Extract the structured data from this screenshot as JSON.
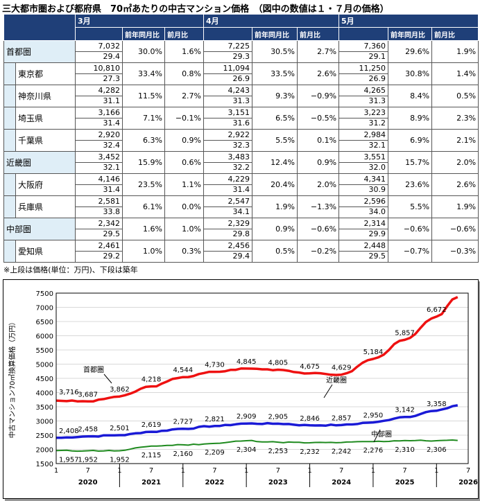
{
  "title": "三大都市圏および都府県　70㎡あたりの中古マンション価格　（図中の数値は１・７月の価格）",
  "table": {
    "months": [
      "3月",
      "4月",
      "5月"
    ],
    "subheaders": [
      "前年同月比",
      "前月比"
    ],
    "rows": [
      {
        "name": "首都圏",
        "level": 0,
        "vals": [
          {
            "price": "7,032",
            "age": "29.4",
            "yoy": "30.0%",
            "mom": "1.6%"
          },
          {
            "price": "7,225",
            "age": "29.3",
            "yoy": "30.5%",
            "mom": "2.7%"
          },
          {
            "price": "7,360",
            "age": "29.1",
            "yoy": "29.6%",
            "mom": "1.9%"
          }
        ]
      },
      {
        "name": "東京都",
        "level": 1,
        "vals": [
          {
            "price": "10,810",
            "age": "27.3",
            "yoy": "33.4%",
            "mom": "0.8%"
          },
          {
            "price": "11,094",
            "age": "26.9",
            "yoy": "33.5%",
            "mom": "2.6%"
          },
          {
            "price": "11,250",
            "age": "26.9",
            "yoy": "30.8%",
            "mom": "1.4%"
          }
        ]
      },
      {
        "name": "神奈川県",
        "level": 1,
        "vals": [
          {
            "price": "4,282",
            "age": "31.1",
            "yoy": "11.5%",
            "mom": "2.7%"
          },
          {
            "price": "4,243",
            "age": "31.3",
            "yoy": "9.3%",
            "mom": "−0.9%"
          },
          {
            "price": "4,265",
            "age": "31.3",
            "yoy": "8.4%",
            "mom": "0.5%"
          }
        ]
      },
      {
        "name": "埼玉県",
        "level": 1,
        "vals": [
          {
            "price": "3,166",
            "age": "31.4",
            "yoy": "7.1%",
            "mom": "−0.1%"
          },
          {
            "price": "3,151",
            "age": "31.6",
            "yoy": "6.5%",
            "mom": "−0.5%"
          },
          {
            "price": "3,223",
            "age": "31.2",
            "yoy": "8.9%",
            "mom": "2.3%"
          }
        ]
      },
      {
        "name": "千葉県",
        "level": 1,
        "vals": [
          {
            "price": "2,920",
            "age": "32.4",
            "yoy": "6.3%",
            "mom": "0.9%"
          },
          {
            "price": "2,922",
            "age": "32.3",
            "yoy": "5.5%",
            "mom": "0.1%"
          },
          {
            "price": "2,984",
            "age": "32.1",
            "yoy": "6.9%",
            "mom": "2.1%"
          }
        ]
      },
      {
        "name": "近畿圏",
        "level": 0,
        "vals": [
          {
            "price": "3,452",
            "age": "32.1",
            "yoy": "15.9%",
            "mom": "0.6%"
          },
          {
            "price": "3,483",
            "age": "32.2",
            "yoy": "12.4%",
            "mom": "0.9%"
          },
          {
            "price": "3,551",
            "age": "32.0",
            "yoy": "15.7%",
            "mom": "2.0%"
          }
        ]
      },
      {
        "name": "大阪府",
        "level": 1,
        "vals": [
          {
            "price": "4,146",
            "age": "31.4",
            "yoy": "23.5%",
            "mom": "1.1%"
          },
          {
            "price": "4,229",
            "age": "31.4",
            "yoy": "20.4%",
            "mom": "2.0%"
          },
          {
            "price": "4,341",
            "age": "30.9",
            "yoy": "23.6%",
            "mom": "2.6%"
          }
        ]
      },
      {
        "name": "兵庫県",
        "level": 1,
        "vals": [
          {
            "price": "2,581",
            "age": "33.8",
            "yoy": "6.1%",
            "mom": "0.0%"
          },
          {
            "price": "2,547",
            "age": "34.1",
            "yoy": "1.9%",
            "mom": "−1.3%"
          },
          {
            "price": "2,596",
            "age": "34.0",
            "yoy": "5.5%",
            "mom": "1.9%"
          }
        ]
      },
      {
        "name": "中部圏",
        "level": 0,
        "vals": [
          {
            "price": "2,342",
            "age": "29.5",
            "yoy": "1.6%",
            "mom": "1.0%"
          },
          {
            "price": "2,329",
            "age": "29.8",
            "yoy": "0.9%",
            "mom": "−0.6%"
          },
          {
            "price": "2,314",
            "age": "29.9",
            "yoy": "−0.6%",
            "mom": "−0.6%"
          }
        ]
      },
      {
        "name": "愛知県",
        "level": 1,
        "vals": [
          {
            "price": "2,461",
            "age": "29.2",
            "yoy": "1.0%",
            "mom": "0.3%"
          },
          {
            "price": "2,456",
            "age": "29.4",
            "yoy": "0.5%",
            "mom": "−0.2%"
          },
          {
            "price": "2,448",
            "age": "29.5",
            "yoy": "−0.7%",
            "mom": "−0.3%"
          }
        ]
      }
    ]
  },
  "note": "※上段は価格(単位：万円)、下段は築年",
  "colors": {
    "header": "#1f3f78",
    "region_bg": "#dfeef7",
    "shuto": "#ee1111",
    "kinki": "#1a1ad6",
    "chubu": "#1e8a1e"
  },
  "chart_data": {
    "type": "line",
    "ylabel": "中古マンション70㎡換算価格（万円）",
    "ylim": [
      1500,
      7500
    ],
    "yticks": [
      1500,
      2000,
      2500,
      3000,
      3500,
      4000,
      4500,
      5000,
      5500,
      6000,
      6500,
      7000,
      7500
    ],
    "x_month_ticks": [
      "1",
      "7",
      "1",
      "7",
      "1",
      "7",
      "1",
      "7",
      "1",
      "7",
      "1",
      "7",
      "1",
      "7"
    ],
    "x_year_labels": [
      "2020",
      "2021",
      "2022",
      "2023",
      "2024",
      "2025",
      "2026"
    ],
    "x_range": [
      "2020-01",
      "2026-07"
    ],
    "series": [
      {
        "name": "首都圏",
        "color": "#ee1111",
        "points": [
          [
            "2020-01",
            3716
          ],
          [
            "2020-07",
            3687
          ],
          [
            "2021-01",
            3862
          ],
          [
            "2021-07",
            4218
          ],
          [
            "2022-01",
            4544
          ],
          [
            "2022-07",
            4730
          ],
          [
            "2023-01",
            4845
          ],
          [
            "2023-07",
            4805
          ],
          [
            "2024-01",
            4675
          ],
          [
            "2024-07",
            4629
          ],
          [
            "2025-01",
            5184
          ],
          [
            "2025-07",
            5857
          ],
          [
            "2026-01",
            6672
          ],
          [
            "2026-05",
            7360
          ]
        ],
        "labeled": [
          "3,716",
          "3,687",
          "3,862",
          "4,218",
          "4,544",
          "4,730",
          "4,845",
          "4,805",
          "4,675",
          "4,629",
          "5,184",
          "5,857",
          "6,672"
        ]
      },
      {
        "name": "近畿圏",
        "color": "#1a1ad6",
        "points": [
          [
            "2020-01",
            2408
          ],
          [
            "2020-07",
            2458
          ],
          [
            "2021-01",
            2501
          ],
          [
            "2021-07",
            2619
          ],
          [
            "2022-01",
            2727
          ],
          [
            "2022-07",
            2821
          ],
          [
            "2023-01",
            2909
          ],
          [
            "2023-07",
            2905
          ],
          [
            "2024-01",
            2846
          ],
          [
            "2024-07",
            2857
          ],
          [
            "2025-01",
            2950
          ],
          [
            "2025-07",
            3142
          ],
          [
            "2026-01",
            3358
          ],
          [
            "2026-05",
            3551
          ]
        ],
        "labeled": [
          "2,408",
          "2,458",
          "2,501",
          "2,619",
          "2,727",
          "2,821",
          "2,909",
          "2,905",
          "2,846",
          "2,857",
          "2,950",
          "3,142",
          "3,358"
        ]
      },
      {
        "name": "中部圏",
        "color": "#1e8a1e",
        "points": [
          [
            "2020-01",
            1957
          ],
          [
            "2020-07",
            1952
          ],
          [
            "2021-01",
            1952
          ],
          [
            "2021-07",
            2115
          ],
          [
            "2022-01",
            2160
          ],
          [
            "2022-07",
            2209
          ],
          [
            "2023-01",
            2304
          ],
          [
            "2023-07",
            2253
          ],
          [
            "2024-01",
            2232
          ],
          [
            "2024-07",
            2242
          ],
          [
            "2025-01",
            2276
          ],
          [
            "2025-07",
            2310
          ],
          [
            "2026-01",
            2306
          ],
          [
            "2026-05",
            2314
          ]
        ],
        "labeled": [
          "1,957",
          "1,952",
          "1,952",
          "2,115",
          "2,160",
          "2,209",
          "2,304",
          "2,253",
          "2,232",
          "2,242",
          "2,276",
          "2,310",
          "2,306"
        ]
      }
    ]
  }
}
